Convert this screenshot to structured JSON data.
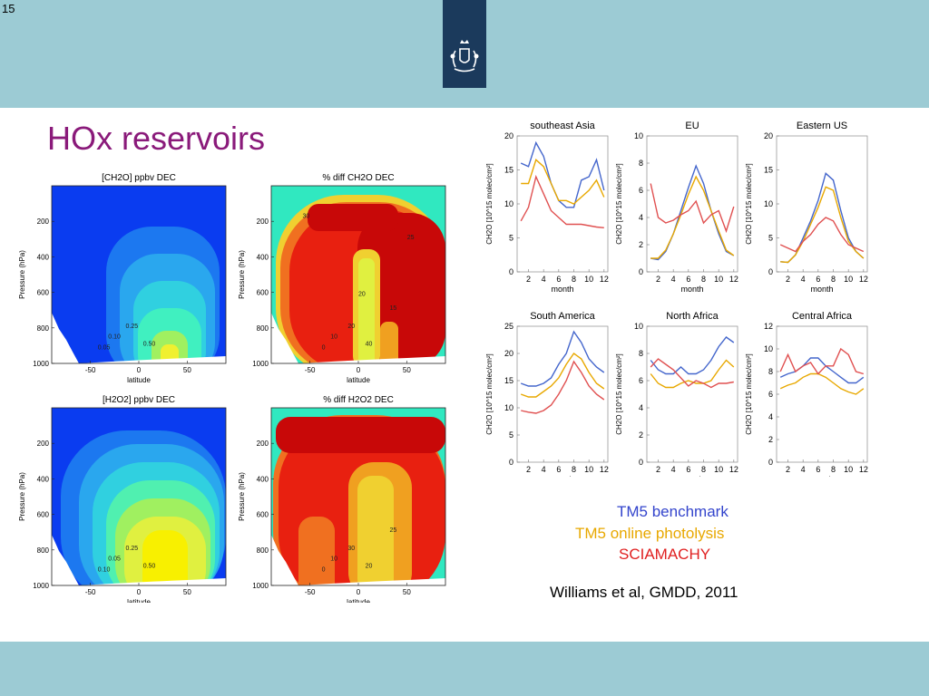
{
  "slide": {
    "number": "15",
    "title": "HOx reservoirs",
    "citation": "Williams et al, GMDD, 2011",
    "colors": {
      "topbar": "#9ccbd4",
      "title": "#8a1a7a",
      "emblem": "#1b3a5c"
    }
  },
  "legend": [
    {
      "label": "TM5 benchmark",
      "color": "#3344cc"
    },
    {
      "label": "TM5 online photolysis",
      "color": "#e8a800"
    },
    {
      "label": "SCIAMACHY",
      "color": "#e02020"
    }
  ],
  "chart_data": [
    {
      "type": "heatmap",
      "title": "[CH2O] ppbv DEC",
      "xlabel": "latitude",
      "ylabel": "Pressure (hPa)",
      "xticks": [
        "-50",
        "0",
        "50"
      ],
      "yticks": [
        "200",
        "400",
        "600",
        "800",
        "1000"
      ],
      "contour_labels": [
        "0.05",
        "0.10",
        "0.25",
        "0.50"
      ]
    },
    {
      "type": "heatmap",
      "title": "% diff CH2O DEC",
      "xlabel": "latitude",
      "ylabel": "Pressure (hPa)",
      "xticks": [
        "-50",
        "0",
        "50"
      ],
      "yticks": [
        "200",
        "400",
        "600",
        "800",
        "1000"
      ],
      "contour_labels": [
        "0",
        "10",
        "20",
        "40",
        "15",
        "20",
        "25",
        "30"
      ]
    },
    {
      "type": "heatmap",
      "title": "[H2O2] ppbv DEC",
      "xlabel": "latitude",
      "ylabel": "Pressure (hPa)",
      "xticks": [
        "-50",
        "0",
        "50"
      ],
      "yticks": [
        "200",
        "400",
        "600",
        "800",
        "1000"
      ],
      "contour_labels": [
        "0.10",
        "0.05",
        "0.25",
        "0.50"
      ]
    },
    {
      "type": "heatmap",
      "title": "% diff H2O2 DEC",
      "xlabel": "latitude",
      "ylabel": "Pressure (hPa)",
      "xticks": [
        "-50",
        "0",
        "50"
      ],
      "yticks": [
        "200",
        "400",
        "600",
        "800",
        "1000"
      ],
      "contour_labels": [
        "0",
        "10",
        "30",
        "20",
        "25"
      ]
    },
    {
      "type": "line",
      "title": "southeast Asia",
      "xlabel": "month",
      "ylabel": "CH2O [10^15 molec/cm²]",
      "x": [
        1,
        2,
        3,
        4,
        5,
        6,
        7,
        8,
        9,
        10,
        11,
        12
      ],
      "xticks": [
        2,
        4,
        6,
        8,
        10,
        12
      ],
      "ylim": [
        0,
        20
      ],
      "yticks": [
        0,
        5,
        10,
        15,
        20
      ],
      "series": [
        {
          "values": [
            16,
            15.5,
            19,
            17,
            13,
            10.5,
            9.5,
            9.5,
            13.5,
            14,
            16.5,
            12
          ],
          "color": "#4466cc"
        },
        {
          "values": [
            13,
            13,
            16.5,
            15.5,
            13,
            10.5,
            10.5,
            10,
            11,
            12,
            13.5,
            11
          ],
          "color": "#e8a800"
        },
        {
          "values": [
            7.5,
            9.5,
            14,
            11.5,
            9,
            8,
            7,
            7,
            7,
            6.8,
            6.6,
            6.5
          ],
          "color": "#e05050"
        }
      ]
    },
    {
      "type": "line",
      "title": "EU",
      "xlabel": "month",
      "ylabel": "CH2O [10^15 molec/cm²]",
      "x": [
        1,
        2,
        3,
        4,
        5,
        6,
        7,
        8,
        9,
        10,
        11,
        12
      ],
      "xticks": [
        2,
        4,
        6,
        8,
        10,
        12
      ],
      "ylim": [
        0,
        10
      ],
      "yticks": [
        0,
        2,
        4,
        6,
        8,
        10
      ],
      "series": [
        {
          "values": [
            1,
            0.9,
            1.5,
            2.8,
            4.5,
            6.2,
            7.8,
            6.5,
            4.5,
            2.8,
            1.5,
            1.2
          ],
          "color": "#4466cc"
        },
        {
          "values": [
            1,
            1,
            1.6,
            2.8,
            4.2,
            5.7,
            7,
            6,
            4.5,
            3,
            1.6,
            1.2
          ],
          "color": "#e8a800"
        },
        {
          "values": [
            6.5,
            4,
            3.6,
            3.8,
            4.2,
            4.5,
            5.2,
            3.6,
            4.2,
            4.5,
            3,
            4.8
          ],
          "color": "#e05050"
        }
      ]
    },
    {
      "type": "line",
      "title": "Eastern US",
      "xlabel": "month",
      "ylabel": "CH2O [10^15 molec/cm²]",
      "x": [
        1,
        2,
        3,
        4,
        5,
        6,
        7,
        8,
        9,
        10,
        11,
        12
      ],
      "xticks": [
        2,
        4,
        6,
        8,
        10,
        12
      ],
      "ylim": [
        0,
        20
      ],
      "yticks": [
        0,
        5,
        10,
        15,
        20
      ],
      "series": [
        {
          "values": [
            1.5,
            1.4,
            2.5,
            5,
            7.5,
            10.5,
            14.5,
            13.5,
            9,
            5,
            3,
            2
          ],
          "color": "#4466cc"
        },
        {
          "values": [
            1.5,
            1.4,
            2.5,
            4.5,
            7,
            9.5,
            12.5,
            12,
            8,
            4.5,
            3,
            2
          ],
          "color": "#e8a800"
        },
        {
          "values": [
            4,
            3.5,
            3,
            4.5,
            5.5,
            7,
            8,
            7.5,
            5.5,
            4,
            3.5,
            3
          ],
          "color": "#e05050"
        }
      ]
    },
    {
      "type": "line",
      "title": "South America",
      "xlabel": "month",
      "ylabel": "CH2O [10^15 molec/cm²]",
      "x": [
        1,
        2,
        3,
        4,
        5,
        6,
        7,
        8,
        9,
        10,
        11,
        12
      ],
      "xticks": [
        2,
        4,
        6,
        8,
        10,
        12
      ],
      "ylim": [
        0,
        25
      ],
      "yticks": [
        0,
        5,
        10,
        15,
        20,
        25
      ],
      "series": [
        {
          "values": [
            14.5,
            14,
            14,
            14.5,
            15.5,
            18,
            20,
            24,
            22,
            19,
            17.5,
            16.5
          ],
          "color": "#4466cc"
        },
        {
          "values": [
            12.5,
            12,
            12,
            13,
            14,
            15.5,
            18,
            20,
            19,
            16.5,
            14.5,
            13.5
          ],
          "color": "#e8a800"
        },
        {
          "values": [
            9.5,
            9.2,
            9,
            9.5,
            10.5,
            12.5,
            15,
            18.5,
            16.5,
            14,
            12.5,
            11.5
          ],
          "color": "#e05050"
        }
      ]
    },
    {
      "type": "line",
      "title": "North Africa",
      "xlabel": "month",
      "ylabel": "CH2O [10^15 molec/cm²]",
      "x": [
        1,
        2,
        3,
        4,
        5,
        6,
        7,
        8,
        9,
        10,
        11,
        12
      ],
      "xticks": [
        2,
        4,
        6,
        8,
        10,
        12
      ],
      "ylim": [
        0,
        10
      ],
      "yticks": [
        0,
        2,
        4,
        6,
        8,
        10
      ],
      "series": [
        {
          "values": [
            7.5,
            6.8,
            6.5,
            6.5,
            7,
            6.5,
            6.5,
            6.8,
            7.5,
            8.5,
            9.2,
            8.8
          ],
          "color": "#4466cc"
        },
        {
          "values": [
            6.5,
            5.8,
            5.5,
            5.5,
            5.8,
            6,
            5.8,
            5.8,
            6,
            6.8,
            7.5,
            7
          ],
          "color": "#e8a800"
        },
        {
          "values": [
            7,
            7.6,
            7.2,
            6.8,
            6.2,
            5.6,
            6,
            5.8,
            5.5,
            5.8,
            5.8,
            5.9
          ],
          "color": "#e05050"
        }
      ]
    },
    {
      "type": "line",
      "title": "Central Africa",
      "xlabel": "month",
      "ylabel": "CH2O [10^15 molec/cm²]",
      "x": [
        1,
        2,
        3,
        4,
        5,
        6,
        7,
        8,
        9,
        10,
        11,
        12
      ],
      "xticks": [
        2,
        4,
        6,
        8,
        10,
        12
      ],
      "ylim": [
        0,
        12
      ],
      "yticks": [
        0,
        2,
        4,
        6,
        8,
        10,
        12
      ],
      "series": [
        {
          "values": [
            7.5,
            7.8,
            8,
            8.5,
            9.2,
            9.2,
            8.5,
            8,
            7.5,
            7,
            7,
            7.5
          ],
          "color": "#4466cc"
        },
        {
          "values": [
            6.5,
            6.8,
            7,
            7.5,
            7.8,
            7.8,
            7.5,
            7,
            6.5,
            6.2,
            6,
            6.5
          ],
          "color": "#e8a800"
        },
        {
          "values": [
            8,
            9.5,
            8,
            8.5,
            8.8,
            7.8,
            8.5,
            8.5,
            10,
            9.5,
            8,
            7.8
          ],
          "color": "#e05050"
        }
      ]
    }
  ]
}
